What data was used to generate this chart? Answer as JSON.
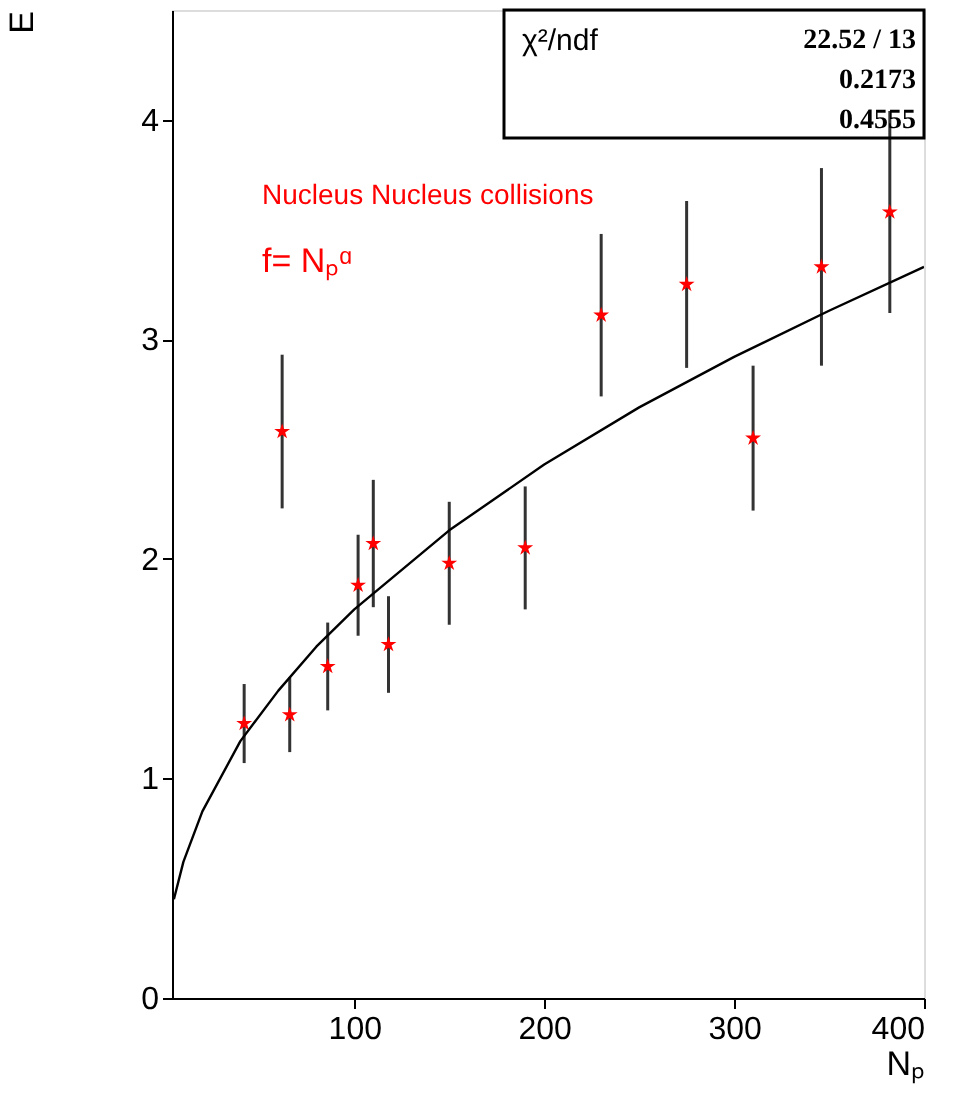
{
  "chart_data": {
    "type": "scatter",
    "xlabel": "Nₚ",
    "ylabel": "E",
    "xlim": [
      4,
      400
    ],
    "ylim": [
      0,
      4.5
    ],
    "xticks": [
      100,
      200,
      300,
      400
    ],
    "yticks": [
      0,
      1,
      2,
      3,
      4
    ],
    "grid": false,
    "marker": "star",
    "annotations": [
      "Nucleus Nucleus collisions",
      "f= Nₚᵅ",
      "χ²/ndf",
      "22.52  /  13",
      "0.2173",
      "0.4555"
    ],
    "series": [
      {
        "color": "#ff0000",
        "x": [
          42,
          62,
          66,
          86,
          102,
          110,
          118,
          150,
          190,
          230,
          275,
          310,
          346,
          382
        ],
        "values": [
          1.25,
          2.58,
          1.29,
          1.51,
          1.88,
          2.07,
          1.61,
          1.98,
          2.05,
          3.11,
          3.25,
          2.55,
          3.33,
          3.58
        ],
        "errors": [
          0.18,
          0.35,
          0.17,
          0.2,
          0.23,
          0.29,
          0.22,
          0.28,
          0.28,
          0.37,
          0.38,
          0.33,
          0.45,
          0.46
        ]
      },
      {
        "type": "line",
        "marker": "none",
        "line_style": "solid",
        "color": "#000000",
        "x": [
          5,
          10,
          20,
          40,
          60,
          80,
          100,
          150,
          200,
          250,
          300,
          350,
          400
        ],
        "values": [
          0.45,
          0.62,
          0.85,
          1.17,
          1.4,
          1.6,
          1.77,
          2.13,
          2.43,
          2.69,
          2.92,
          3.13,
          3.33
        ]
      }
    ]
  }
}
